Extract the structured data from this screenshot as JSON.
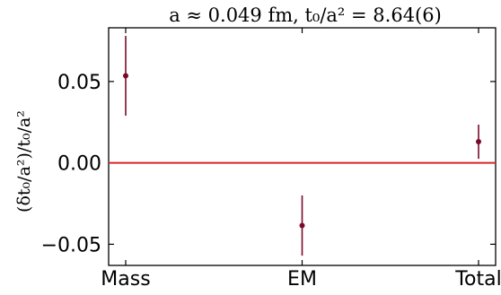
{
  "chart_data": {
    "type": "scatter",
    "title": "a ≈ 0.049 fm, t₀/a² = 8.64(6)",
    "xlabel": "",
    "ylabel": "(δt₀/a²)/t₀/a²",
    "categories": [
      "Mass",
      "EM",
      "Total"
    ],
    "ytick_labels": [
      "0.05",
      "0.00",
      "−0.05"
    ],
    "yticks": [
      0.05,
      0.0,
      -0.05
    ],
    "ylim": [
      -0.063,
      0.083
    ],
    "grid": false,
    "reference_line": {
      "y": 0.0,
      "color": "#d62728"
    },
    "series": [
      {
        "values": [
          0.0535,
          -0.0385,
          0.013
        ],
        "errors": [
          0.0245,
          0.0185,
          0.0105
        ],
        "color": "#7b0a2a"
      }
    ]
  }
}
